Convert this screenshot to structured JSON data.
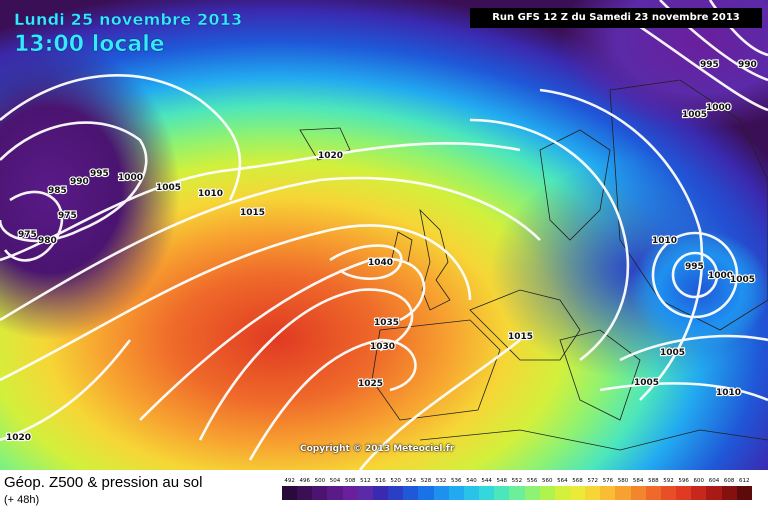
{
  "header": {
    "date": "Lundi 25 novembre 2013",
    "time": "13:00 locale",
    "run": "Run GFS 12 Z du Samedi 23 novembre 2013"
  },
  "copyright": "Copyright © 2013 Meteociel.fr",
  "footer": {
    "title": "Géop. Z500 & pression au sol",
    "subtitle": "(+ 48h)"
  },
  "legend": {
    "values": [
      "492",
      "496",
      "500",
      "504",
      "508",
      "512",
      "516",
      "520",
      "524",
      "528",
      "532",
      "536",
      "540",
      "544",
      "548",
      "552",
      "556",
      "560",
      "564",
      "568",
      "572",
      "576",
      "580",
      "584",
      "588",
      "592",
      "596",
      "600",
      "604",
      "608",
      "612"
    ],
    "colors": [
      "#2a0a3a",
      "#3b0f55",
      "#4a1470",
      "#5a1a88",
      "#6a1f9c",
      "#5b2aa8",
      "#3a2ab0",
      "#2b3fc4",
      "#1f58d8",
      "#1a72e8",
      "#1e90f0",
      "#22aaf0",
      "#29c3ea",
      "#34d8da",
      "#4ce6bc",
      "#6cef98",
      "#8ef272",
      "#b0f24e",
      "#d2f03c",
      "#eaea38",
      "#f6d636",
      "#f8bd33",
      "#f7a130",
      "#f3862d",
      "#ef6a2a",
      "#e94f26",
      "#e03a22",
      "#c8281c",
      "#a91a16",
      "#861010",
      "#5c0a0a"
    ]
  },
  "isobars": [
    {
      "label": "1020",
      "kind": "label"
    },
    {
      "label": "1015",
      "kind": "label"
    },
    {
      "label": "1010",
      "kind": "label"
    },
    {
      "label": "1005",
      "kind": "label"
    },
    {
      "label": "1000",
      "kind": "label"
    },
    {
      "label": "995",
      "kind": "label"
    },
    {
      "label": "990",
      "kind": "label"
    },
    {
      "label": "985",
      "kind": "label"
    },
    {
      "label": "975",
      "kind": "label"
    },
    {
      "label": "980",
      "kind": "label"
    },
    {
      "label": "975",
      "kind": "label"
    },
    {
      "label": "1040",
      "kind": "label"
    },
    {
      "label": "1035",
      "kind": "label"
    },
    {
      "label": "1030",
      "kind": "label"
    },
    {
      "label": "1025",
      "kind": "label"
    },
    {
      "label": "1020",
      "kind": "label"
    },
    {
      "label": "1015",
      "kind": "label"
    },
    {
      "label": "1010",
      "kind": "label"
    },
    {
      "label": "995",
      "kind": "label"
    },
    {
      "label": "1000",
      "kind": "label"
    },
    {
      "label": "1005",
      "kind": "label"
    },
    {
      "label": "1005",
      "kind": "label"
    },
    {
      "label": "1005",
      "kind": "label"
    },
    {
      "label": "1010",
      "kind": "label"
    },
    {
      "label": "995",
      "kind": "label"
    },
    {
      "label": "990",
      "kind": "label"
    },
    {
      "label": "1000",
      "kind": "label"
    },
    {
      "label": "1005",
      "kind": "label"
    }
  ]
}
